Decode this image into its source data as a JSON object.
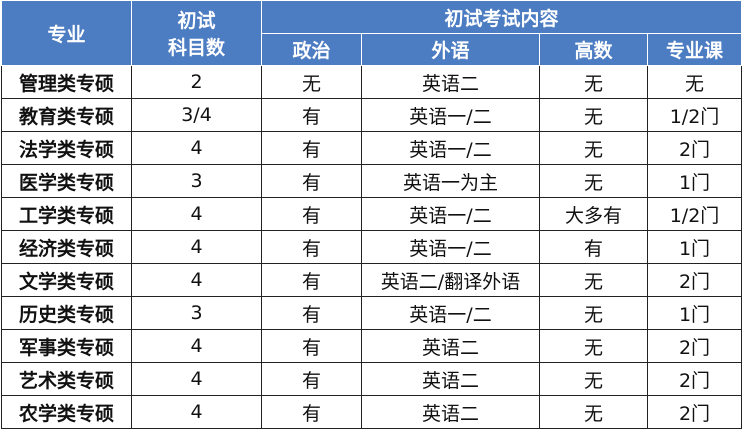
{
  "header": {
    "major": "专业",
    "count": "初试科目数",
    "content": "初试考试内容",
    "sub": [
      "政治",
      "外语",
      "高数",
      "专业课"
    ]
  },
  "colors": {
    "header_bg": "#4c7cc2"
  },
  "rows": [
    [
      "管理类专硕",
      "2",
      "无",
      "英语二",
      "无",
      "无"
    ],
    [
      "教育类专硕",
      "3/4",
      "有",
      "英语一/二",
      "无",
      "1/2门"
    ],
    [
      "法学类专硕",
      "4",
      "有",
      "英语一/二",
      "无",
      "2门"
    ],
    [
      "医学类专硕",
      "3",
      "有",
      "英语一为主",
      "无",
      "1门"
    ],
    [
      "工学类专硕",
      "4",
      "有",
      "英语一/二",
      "大多有",
      "1/2门"
    ],
    [
      "经济类专硕",
      "4",
      "有",
      "英语一/二",
      "有",
      "1门"
    ],
    [
      "文学类专硕",
      "4",
      "有",
      "英语二/翻译外语",
      "无",
      "2门"
    ],
    [
      "历史类专硕",
      "3",
      "有",
      "英语一/二",
      "无",
      "1门"
    ],
    [
      "军事类专硕",
      "4",
      "有",
      "英语二",
      "无",
      "2门"
    ],
    [
      "艺术类专硕",
      "4",
      "有",
      "英语二",
      "无",
      "2门"
    ],
    [
      "农学类专硕",
      "4",
      "有",
      "英语二",
      "无",
      "2门"
    ]
  ]
}
